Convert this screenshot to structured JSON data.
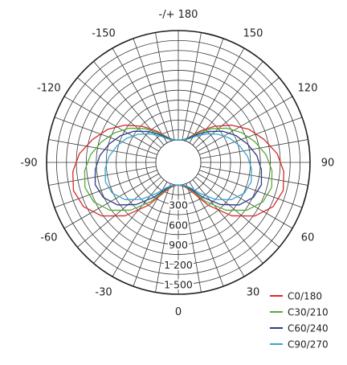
{
  "chart_data": {
    "type": "polar",
    "angle_labels": [
      {
        "text": "-/+ 180",
        "angle": 180
      },
      {
        "text": "150",
        "angle": 150
      },
      {
        "text": "-150",
        "angle": -150
      },
      {
        "text": "120",
        "angle": 120
      },
      {
        "text": "-120",
        "angle": -120
      },
      {
        "text": "90",
        "angle": 90
      },
      {
        "text": "-90",
        "angle": -90
      },
      {
        "text": "60",
        "angle": 60
      },
      {
        "text": "-60",
        "angle": -60
      },
      {
        "text": "30",
        "angle": 30
      },
      {
        "text": "-30",
        "angle": -30
      },
      {
        "text": "0",
        "angle": 0
      }
    ],
    "radial_ticks": [
      {
        "value": 300,
        "label": "300"
      },
      {
        "value": 600,
        "label": "600"
      },
      {
        "value": 900,
        "label": "900"
      },
      {
        "value": 1200,
        "label": "1 200"
      },
      {
        "value": 1500,
        "label": "1 500"
      }
    ],
    "radial_max": 1650,
    "angular_grid_step": 10,
    "center_hole_fraction": 0.17,
    "grid": true,
    "legend_position": "bottom-right",
    "series": [
      {
        "name": "C0/180",
        "color": "#d62a2a",
        "points": [
          [
            0,
            0
          ],
          [
            15,
            40
          ],
          [
            25,
            150
          ],
          [
            35,
            450
          ],
          [
            45,
            800
          ],
          [
            55,
            1070
          ],
          [
            65,
            1240
          ],
          [
            75,
            1300
          ],
          [
            85,
            1260
          ],
          [
            95,
            1160
          ],
          [
            105,
            1000
          ],
          [
            115,
            840
          ],
          [
            125,
            640
          ],
          [
            135,
            430
          ],
          [
            145,
            240
          ],
          [
            155,
            90
          ],
          [
            165,
            20
          ],
          [
            175,
            0
          ],
          [
            180,
            0
          ]
        ]
      },
      {
        "name": "C30/210",
        "color": "#56ac3c",
        "points": [
          [
            0,
            0
          ],
          [
            15,
            30
          ],
          [
            25,
            120
          ],
          [
            35,
            380
          ],
          [
            45,
            680
          ],
          [
            55,
            920
          ],
          [
            65,
            1070
          ],
          [
            75,
            1120
          ],
          [
            85,
            1080
          ],
          [
            95,
            990
          ],
          [
            105,
            860
          ],
          [
            115,
            720
          ],
          [
            125,
            560
          ],
          [
            135,
            380
          ],
          [
            145,
            210
          ],
          [
            155,
            80
          ],
          [
            165,
            20
          ],
          [
            175,
            0
          ],
          [
            180,
            0
          ]
        ]
      },
      {
        "name": "C60/240",
        "color": "#2c3c8a",
        "points": [
          [
            0,
            0
          ],
          [
            15,
            25
          ],
          [
            25,
            100
          ],
          [
            35,
            300
          ],
          [
            45,
            560
          ],
          [
            55,
            780
          ],
          [
            65,
            910
          ],
          [
            75,
            960
          ],
          [
            85,
            920
          ],
          [
            95,
            850
          ],
          [
            105,
            740
          ],
          [
            115,
            620
          ],
          [
            125,
            480
          ],
          [
            135,
            320
          ],
          [
            145,
            180
          ],
          [
            155,
            70
          ],
          [
            165,
            15
          ],
          [
            175,
            0
          ],
          [
            180,
            0
          ]
        ]
      },
      {
        "name": "C90/270",
        "color": "#33a6d8",
        "points": [
          [
            0,
            0
          ],
          [
            15,
            20
          ],
          [
            25,
            80
          ],
          [
            35,
            230
          ],
          [
            45,
            450
          ],
          [
            55,
            640
          ],
          [
            65,
            760
          ],
          [
            75,
            800
          ],
          [
            85,
            770
          ],
          [
            95,
            710
          ],
          [
            105,
            620
          ],
          [
            115,
            520
          ],
          [
            125,
            400
          ],
          [
            135,
            270
          ],
          [
            145,
            150
          ],
          [
            155,
            55
          ],
          [
            165,
            12
          ],
          [
            175,
            0
          ],
          [
            180,
            0
          ]
        ]
      }
    ]
  }
}
